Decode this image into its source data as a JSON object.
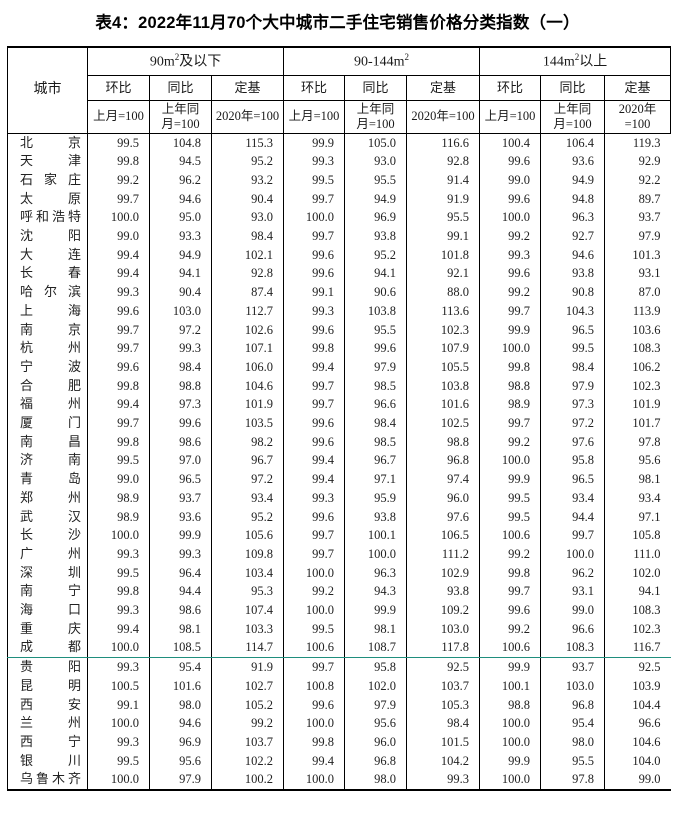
{
  "title": "表4：2022年11月70个大中城市二手住宅销售价格分类指数（一）",
  "table": {
    "city_header": "城市",
    "groups": [
      {
        "pre": "90m",
        "sup": "2",
        "post": "及以下"
      },
      {
        "pre": "90-144m",
        "sup": "2",
        "post": ""
      },
      {
        "pre": "144m",
        "sup": "2",
        "post": "以上"
      }
    ],
    "sub_headers": [
      "环比",
      "同比",
      "定基"
    ],
    "base_headers": [
      "上月=100",
      "上年同月=100",
      "2020年=100"
    ],
    "divider_color": "#1f8e7d",
    "rows": [
      {
        "city": "北京",
        "values": [
          "99.5",
          "104.8",
          "115.3",
          "99.9",
          "105.0",
          "116.6",
          "100.4",
          "106.4",
          "119.3"
        ]
      },
      {
        "city": "天津",
        "values": [
          "99.8",
          "94.5",
          "95.2",
          "99.3",
          "93.0",
          "92.8",
          "99.6",
          "93.6",
          "92.9"
        ]
      },
      {
        "city": "石家庄",
        "values": [
          "99.2",
          "96.2",
          "93.2",
          "99.5",
          "95.5",
          "91.4",
          "99.0",
          "94.9",
          "92.2"
        ]
      },
      {
        "city": "太原",
        "values": [
          "99.7",
          "94.6",
          "90.4",
          "99.7",
          "94.9",
          "91.9",
          "99.6",
          "94.8",
          "89.7"
        ]
      },
      {
        "city": "呼和浩特",
        "values": [
          "100.0",
          "95.0",
          "93.0",
          "100.0",
          "96.9",
          "95.5",
          "100.0",
          "96.3",
          "93.7"
        ]
      },
      {
        "city": "沈阳",
        "values": [
          "99.0",
          "93.3",
          "98.4",
          "99.7",
          "93.8",
          "99.1",
          "99.2",
          "92.7",
          "97.9"
        ]
      },
      {
        "city": "大连",
        "values": [
          "99.4",
          "94.9",
          "102.1",
          "99.6",
          "95.2",
          "101.8",
          "99.3",
          "94.6",
          "101.3"
        ]
      },
      {
        "city": "长春",
        "values": [
          "99.4",
          "94.1",
          "92.8",
          "99.6",
          "94.1",
          "92.1",
          "99.6",
          "93.8",
          "93.1"
        ]
      },
      {
        "city": "哈尔滨",
        "values": [
          "99.3",
          "90.4",
          "87.4",
          "99.1",
          "90.6",
          "88.0",
          "99.2",
          "90.8",
          "87.0"
        ]
      },
      {
        "city": "上海",
        "values": [
          "99.6",
          "103.0",
          "112.7",
          "99.3",
          "103.8",
          "113.6",
          "99.7",
          "104.3",
          "113.9"
        ]
      },
      {
        "city": "南京",
        "values": [
          "99.7",
          "97.2",
          "102.6",
          "99.6",
          "95.5",
          "102.3",
          "99.9",
          "96.5",
          "103.6"
        ]
      },
      {
        "city": "杭州",
        "values": [
          "99.7",
          "99.3",
          "107.1",
          "99.8",
          "99.6",
          "107.9",
          "100.0",
          "99.5",
          "108.3"
        ]
      },
      {
        "city": "宁波",
        "values": [
          "99.6",
          "98.4",
          "106.0",
          "99.4",
          "97.9",
          "105.5",
          "99.8",
          "98.4",
          "106.2"
        ]
      },
      {
        "city": "合肥",
        "values": [
          "99.8",
          "98.8",
          "104.6",
          "99.7",
          "98.5",
          "103.8",
          "98.8",
          "97.9",
          "102.3"
        ]
      },
      {
        "city": "福州",
        "values": [
          "99.4",
          "97.3",
          "101.9",
          "99.7",
          "96.6",
          "101.6",
          "98.9",
          "97.3",
          "101.9"
        ]
      },
      {
        "city": "厦门",
        "values": [
          "99.7",
          "99.6",
          "103.5",
          "99.6",
          "98.4",
          "102.5",
          "99.7",
          "97.2",
          "101.7"
        ]
      },
      {
        "city": "南昌",
        "values": [
          "99.8",
          "98.6",
          "98.2",
          "99.6",
          "98.5",
          "98.8",
          "99.2",
          "97.6",
          "97.8"
        ]
      },
      {
        "city": "济南",
        "values": [
          "99.5",
          "97.0",
          "96.7",
          "99.4",
          "96.7",
          "96.8",
          "100.0",
          "95.8",
          "95.6"
        ]
      },
      {
        "city": "青岛",
        "values": [
          "99.0",
          "96.5",
          "97.2",
          "99.4",
          "97.1",
          "97.4",
          "99.9",
          "96.5",
          "98.1"
        ]
      },
      {
        "city": "郑州",
        "values": [
          "98.9",
          "93.7",
          "93.4",
          "99.3",
          "95.9",
          "96.0",
          "99.5",
          "93.4",
          "93.4"
        ]
      },
      {
        "city": "武汉",
        "values": [
          "98.9",
          "93.6",
          "95.2",
          "99.6",
          "93.8",
          "97.6",
          "99.5",
          "94.4",
          "97.1"
        ]
      },
      {
        "city": "长沙",
        "values": [
          "100.0",
          "99.9",
          "105.6",
          "99.7",
          "100.1",
          "106.5",
          "100.6",
          "99.7",
          "105.8"
        ]
      },
      {
        "city": "广州",
        "values": [
          "99.3",
          "99.3",
          "109.8",
          "99.7",
          "100.0",
          "111.2",
          "99.2",
          "100.0",
          "111.0"
        ]
      },
      {
        "city": "深圳",
        "values": [
          "99.5",
          "96.4",
          "103.4",
          "100.0",
          "96.3",
          "102.9",
          "99.8",
          "96.2",
          "102.0"
        ]
      },
      {
        "city": "南宁",
        "values": [
          "99.8",
          "94.4",
          "95.3",
          "99.2",
          "94.3",
          "93.8",
          "99.7",
          "93.1",
          "94.1"
        ]
      },
      {
        "city": "海口",
        "values": [
          "99.3",
          "98.6",
          "107.4",
          "100.0",
          "99.9",
          "109.2",
          "99.6",
          "99.0",
          "108.3"
        ]
      },
      {
        "city": "重庆",
        "values": [
          "99.4",
          "98.1",
          "103.3",
          "99.5",
          "98.1",
          "103.0",
          "99.2",
          "96.6",
          "102.3"
        ]
      },
      {
        "city": "成都",
        "values": [
          "100.0",
          "108.5",
          "114.7",
          "100.6",
          "108.7",
          "117.8",
          "100.6",
          "108.3",
          "116.7"
        ],
        "divider_below": true
      },
      {
        "city": "贵阳",
        "values": [
          "99.3",
          "95.4",
          "91.9",
          "99.7",
          "95.8",
          "92.5",
          "99.9",
          "93.7",
          "92.5"
        ]
      },
      {
        "city": "昆明",
        "values": [
          "100.5",
          "101.6",
          "102.7",
          "100.8",
          "102.0",
          "103.7",
          "100.1",
          "103.0",
          "103.9"
        ]
      },
      {
        "city": "西安",
        "values": [
          "99.1",
          "98.0",
          "105.2",
          "99.6",
          "97.9",
          "105.3",
          "98.8",
          "96.8",
          "104.4"
        ]
      },
      {
        "city": "兰州",
        "values": [
          "100.0",
          "94.6",
          "99.2",
          "100.0",
          "95.6",
          "98.4",
          "100.0",
          "95.4",
          "96.6"
        ]
      },
      {
        "city": "西宁",
        "values": [
          "99.3",
          "96.9",
          "103.7",
          "99.8",
          "96.0",
          "101.5",
          "100.0",
          "98.0",
          "104.6"
        ]
      },
      {
        "city": "银川",
        "values": [
          "99.5",
          "95.6",
          "102.2",
          "99.4",
          "96.8",
          "104.2",
          "99.9",
          "95.5",
          "104.0"
        ]
      },
      {
        "city": "乌鲁木齐",
        "values": [
          "100.0",
          "97.9",
          "100.2",
          "100.0",
          "98.0",
          "99.3",
          "100.0",
          "97.8",
          "99.0"
        ]
      }
    ]
  }
}
